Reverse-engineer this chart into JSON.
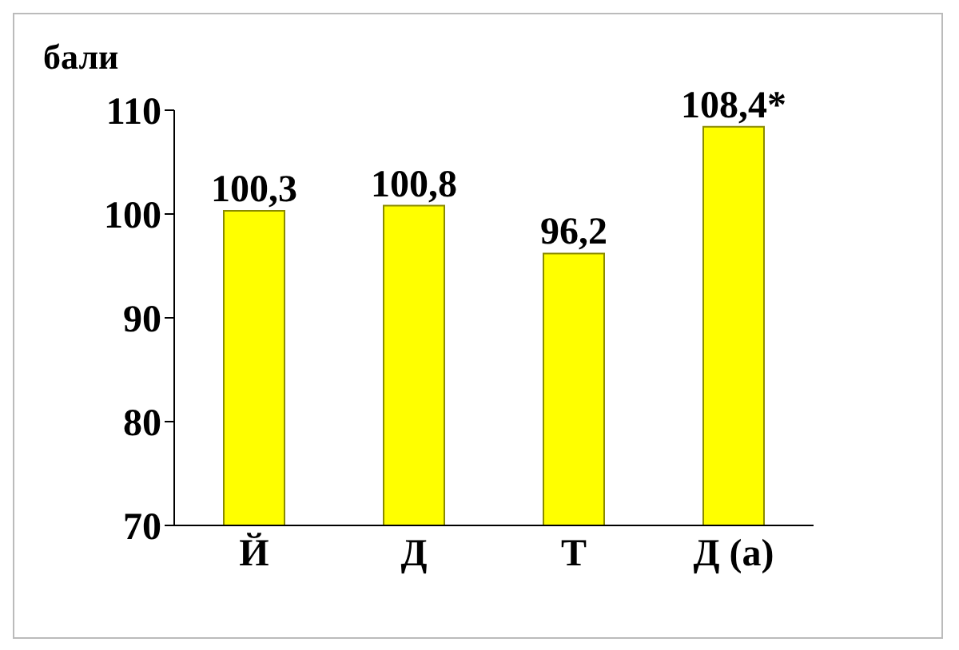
{
  "chart_data": {
    "type": "bar",
    "ylabel": "бали",
    "categories": [
      "Й",
      "Д",
      "Т",
      "Д (а)"
    ],
    "values": [
      100.3,
      100.8,
      96.2,
      108.4
    ],
    "value_labels": [
      "100,3",
      "100,8",
      "96,2",
      "108,4*"
    ],
    "color": "#ffff00",
    "ylim": [
      70,
      110
    ],
    "yticks": [
      70,
      80,
      90,
      100,
      110
    ],
    "grid": false,
    "legend": false
  }
}
